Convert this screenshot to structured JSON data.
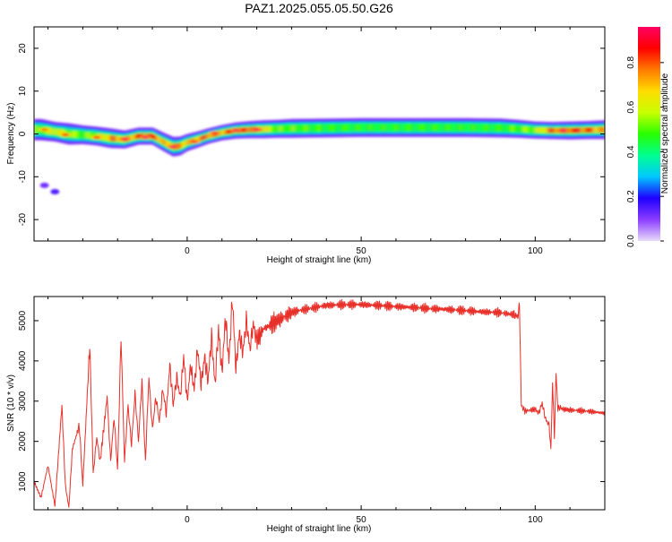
{
  "chart_data": [
    {
      "type": "heatmap",
      "title": "PAZ1.2025.055.05.50.G26",
      "xlabel": "Height of straight line (km)",
      "ylabel": "Frequency (Hz)",
      "xlim": [
        -44,
        120
      ],
      "ylim": [
        -25,
        25
      ],
      "xticks": [
        0,
        50,
        100
      ],
      "yticks": [
        -20,
        -10,
        0,
        10,
        20
      ],
      "colorbar": {
        "label": "Normalized spectral amplitude",
        "range": [
          0,
          0.96
        ],
        "ticks": [
          "0.0",
          "0.2",
          "0.4",
          "0.6",
          "0.8"
        ],
        "colormap": [
          "#e8dcfa",
          "#8b3cff",
          "#1e00ff",
          "#00c8ff",
          "#00ff90",
          "#28ff00",
          "#c8ff00",
          "#ffdc00",
          "#ff7a00",
          "#ff0000",
          "#ff0064"
        ]
      },
      "band": {
        "x": [
          -42,
          -38,
          -34,
          -30,
          -26,
          -22,
          -18,
          -14,
          -10,
          -6,
          -4,
          -2,
          0,
          3,
          6,
          10,
          14,
          18,
          22,
          26,
          30,
          40,
          50,
          60,
          70,
          80,
          90,
          95,
          100,
          105,
          110,
          115,
          120
        ],
        "center": [
          1.0,
          0.5,
          0.0,
          -0.2,
          -0.5,
          -1.0,
          -1.3,
          -0.5,
          -0.5,
          -2.2,
          -3.0,
          -2.8,
          -2.0,
          -1.3,
          -0.5,
          0.3,
          0.8,
          1.0,
          1.1,
          1.2,
          1.3,
          1.4,
          1.5,
          1.5,
          1.5,
          1.5,
          1.4,
          1.2,
          0.9,
          0.8,
          0.8,
          0.9,
          1.0
        ],
        "width": [
          2.5,
          2.3,
          2.5,
          2.2,
          2.2,
          2.3,
          2.1,
          2.0,
          2.0,
          2.2,
          2.3,
          2.2,
          2.0,
          1.9,
          1.8,
          1.8,
          1.9,
          2.0,
          2.1,
          2.1,
          2.2,
          2.2,
          2.2,
          2.2,
          2.2,
          2.2,
          2.2,
          2.1,
          2.0,
          2.0,
          2.1,
          2.1,
          2.2
        ],
        "peak": [
          0.55,
          0.7,
          0.6,
          0.55,
          0.6,
          0.8,
          0.75,
          0.85,
          0.9,
          0.7,
          0.85,
          0.8,
          0.75,
          0.8,
          0.85,
          0.8,
          0.9,
          0.9,
          0.7,
          0.55,
          0.55,
          0.5,
          0.5,
          0.5,
          0.5,
          0.5,
          0.5,
          0.55,
          0.6,
          0.85,
          0.9,
          0.85,
          0.75
        ]
      },
      "hotspots": [
        {
          "x": -41,
          "y": 1.0,
          "v": 0.8
        },
        {
          "x": -35,
          "y": -0.2,
          "v": 0.85
        },
        {
          "x": -26,
          "y": -0.8,
          "v": 0.85
        },
        {
          "x": -18,
          "y": -1.2,
          "v": 0.95
        },
        {
          "x": -12,
          "y": -0.8,
          "v": 0.95
        },
        {
          "x": -4,
          "y": -3.0,
          "v": 0.95
        },
        {
          "x": 2,
          "y": -1.8,
          "v": 0.9
        },
        {
          "x": 8,
          "y": 0.2,
          "v": 0.9
        },
        {
          "x": 14,
          "y": 0.9,
          "v": 0.95
        },
        {
          "x": 20,
          "y": 1.0,
          "v": 0.95
        },
        {
          "x": 108,
          "y": 0.8,
          "v": 0.95
        }
      ],
      "blobs": [
        {
          "x": -41,
          "y": -12,
          "v": 0.12
        },
        {
          "x": -38,
          "y": -13.5,
          "v": 0.15
        }
      ]
    },
    {
      "type": "line",
      "xlabel": "Height of straight line (km)",
      "ylabel": "SNR (10 * v/v)",
      "xlim": [
        -44,
        120
      ],
      "ylim": [
        300,
        5600
      ],
      "xticks": [
        0,
        50,
        100
      ],
      "yticks": [
        1000,
        2000,
        3000,
        4000,
        5000
      ],
      "series": [
        {
          "color": "#e8302a",
          "x": [
            -44,
            -42,
            -40,
            -38,
            -36,
            -35,
            -34,
            -33,
            -31,
            -30,
            -28,
            -27,
            -26,
            -25,
            -23,
            -22,
            -21,
            -20,
            -19,
            -18,
            -17,
            -16,
            -15,
            -14,
            -13,
            -12,
            -11,
            -10,
            -9,
            -8,
            -7,
            -6,
            -5,
            -4,
            -3,
            -2,
            -1,
            0,
            1,
            2,
            3,
            4,
            5,
            6,
            7,
            8,
            9,
            10,
            11,
            12,
            13,
            14,
            15,
            16,
            17,
            18,
            19,
            20,
            22,
            24,
            26,
            28,
            30,
            32,
            35,
            38,
            40,
            45,
            50,
            55,
            60,
            65,
            70,
            75,
            80,
            85,
            90,
            94,
            95,
            95.5,
            96,
            97,
            100,
            101,
            102,
            103,
            104,
            104.5,
            105,
            105.5,
            106,
            106.5,
            107,
            108,
            110,
            115,
            120
          ],
          "y": [
            1000,
            600,
            1400,
            400,
            2900,
            900,
            350,
            1800,
            2400,
            900,
            4400,
            1200,
            2100,
            1500,
            3100,
            1500,
            2600,
            1300,
            4600,
            1500,
            2900,
            1900,
            3200,
            2000,
            3500,
            1500,
            3600,
            2300,
            3100,
            2500,
            3300,
            2700,
            3900,
            2900,
            3600,
            3100,
            4100,
            3000,
            3900,
            3300,
            4300,
            3400,
            4100,
            3500,
            4600,
            3400,
            4800,
            3700,
            5100,
            4000,
            5550,
            3800,
            4700,
            4200,
            5000,
            4300,
            4900,
            4500,
            4800,
            4900,
            5000,
            5100,
            5200,
            5250,
            5300,
            5350,
            5380,
            5400,
            5400,
            5380,
            5350,
            5330,
            5300,
            5280,
            5250,
            5220,
            5200,
            5150,
            5100,
            5400,
            2900,
            2750,
            2800,
            2700,
            2950,
            2550,
            2400,
            1800,
            3500,
            2100,
            3700,
            2800,
            2850,
            2800,
            2780,
            2750,
            2700
          ]
        }
      ]
    }
  ]
}
